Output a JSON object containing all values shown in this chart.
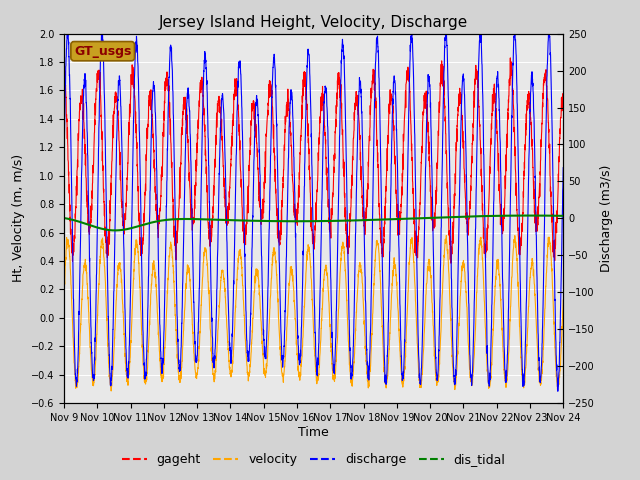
{
  "title": "Jersey Island Height, Velocity, Discharge",
  "xlabel": "Time",
  "ylabel_left": "Ht, Velocity (m, m/s)",
  "ylabel_right": "Discharge (m3/s)",
  "ylim_left": [
    -0.6,
    2.0
  ],
  "ylim_right": [
    -250,
    250
  ],
  "xlim_days": 15,
  "x_tick_labels": [
    "Nov 9",
    "Nov 10",
    "Nov 11",
    "Nov 12",
    "Nov 13",
    "Nov 14",
    "Nov 15",
    "Nov 16",
    "Nov 17",
    "Nov 18",
    "Nov 19",
    "Nov 20",
    "Nov 21",
    "Nov 22",
    "Nov 23",
    "Nov 24"
  ],
  "legend_labels": [
    "gageht",
    "velocity",
    "discharge",
    "dis_tidal"
  ],
  "legend_colors": [
    "red",
    "orange",
    "blue",
    "green"
  ],
  "bg_color": "#d3d3d3",
  "plot_bg": "#e8e8e8",
  "gt_usgs_box_color": "#c8a020",
  "gt_usgs_text_color": "#8b0000",
  "title_fontsize": 11,
  "axis_fontsize": 9,
  "tick_fontsize": 7,
  "legend_fontsize": 9
}
